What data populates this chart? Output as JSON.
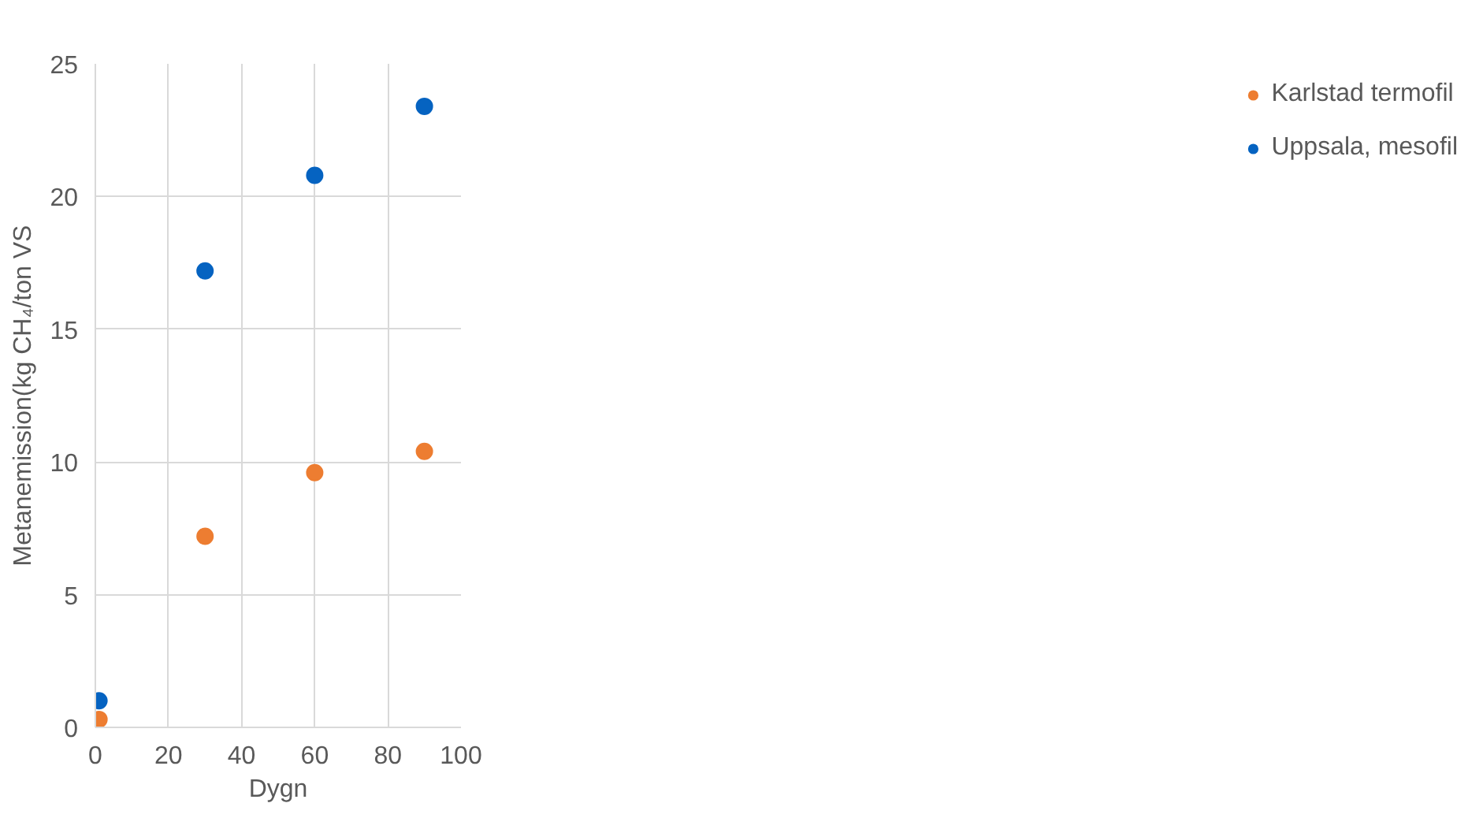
{
  "chart_data": {
    "type": "scatter",
    "xlabel": "Dygn",
    "ylabel": "Metanemission(kg CH₄/ton VS",
    "x": [
      1,
      30,
      60,
      90
    ],
    "series": [
      {
        "name": "Karlstad termofil",
        "color": "#ed7d31",
        "values": [
          0.3,
          7.2,
          9.6,
          10.4
        ]
      },
      {
        "name": "Uppsala, mesofil",
        "color": "#0563c1",
        "values": [
          1.0,
          17.2,
          20.8,
          23.4
        ]
      }
    ],
    "xlim": [
      0,
      100
    ],
    "ylim": [
      0,
      25
    ],
    "xticks": [
      0,
      20,
      40,
      60,
      80,
      100
    ],
    "yticks": [
      0,
      5,
      10,
      15,
      20,
      25
    ],
    "grid": true,
    "legend": "right",
    "marker": "circle"
  }
}
